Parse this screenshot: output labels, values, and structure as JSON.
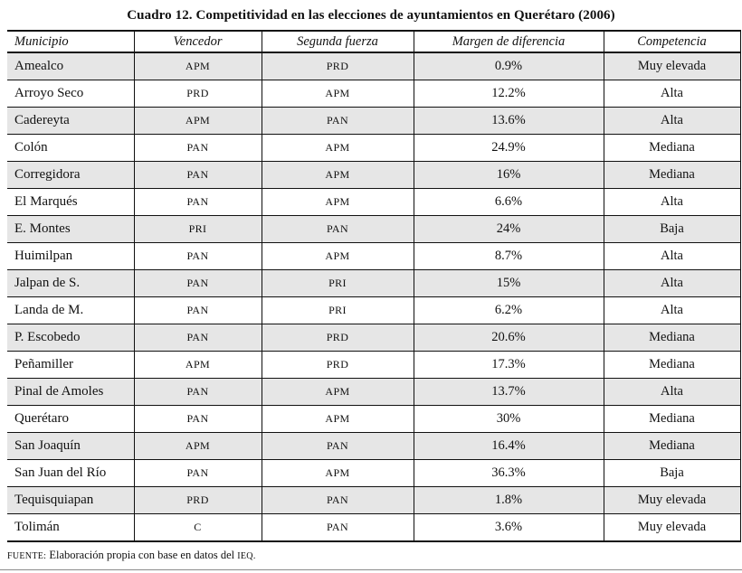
{
  "title": "Cuadro 12. Competitividad en las elecciones de ayuntamientos en Querétaro (2006)",
  "table": {
    "columns": [
      "Municipio",
      "Vencedor",
      "Segunda fuerza",
      "Margen de diferencia",
      "Competencia"
    ],
    "rows": [
      [
        "Amealco",
        "APM",
        "PRD",
        "0.9%",
        "Muy elevada"
      ],
      [
        "Arroyo Seco",
        "PRD",
        "APM",
        "12.2%",
        "Alta"
      ],
      [
        "Cadereyta",
        "APM",
        "PAN",
        "13.6%",
        "Alta"
      ],
      [
        "Colón",
        "PAN",
        "APM",
        "24.9%",
        "Mediana"
      ],
      [
        "Corregidora",
        "PAN",
        "APM",
        "16%",
        "Mediana"
      ],
      [
        "El Marqués",
        "PAN",
        "APM",
        "6.6%",
        "Alta"
      ],
      [
        "E. Montes",
        "PRI",
        "PAN",
        "24%",
        "Baja"
      ],
      [
        "Huimilpan",
        "PAN",
        "APM",
        "8.7%",
        "Alta"
      ],
      [
        "Jalpan de S.",
        "PAN",
        "PRI",
        "15%",
        "Alta"
      ],
      [
        "Landa de M.",
        "PAN",
        "PRI",
        "6.2%",
        "Alta"
      ],
      [
        "P. Escobedo",
        "PAN",
        "PRD",
        "20.6%",
        "Mediana"
      ],
      [
        "Peñamiller",
        "APM",
        "PRD",
        "17.3%",
        "Mediana"
      ],
      [
        "Pinal de Amoles",
        "PAN",
        "APM",
        "13.7%",
        "Alta"
      ],
      [
        "Querétaro",
        "PAN",
        "APM",
        "30%",
        "Mediana"
      ],
      [
        "San Joaquín",
        "APM",
        "PAN",
        "16.4%",
        "Mediana"
      ],
      [
        "San Juan del Río",
        "PAN",
        "APM",
        "36.3%",
        "Baja"
      ],
      [
        "Tequisquiapan",
        "PRD",
        "PAN",
        "1.8%",
        "Muy elevada"
      ],
      [
        "Tolimán",
        "C",
        "PAN",
        "3.6%",
        "Muy elevada"
      ]
    ]
  },
  "source_note": {
    "prefix": "FUENTE:",
    "body": " Elaboración propia con base en datos del ",
    "suffix": "IEQ."
  },
  "colors": {
    "row_shade": "#e6e6e6",
    "border": "#111111",
    "text": "#111111",
    "bottom_rule": "#8a8a8a"
  }
}
